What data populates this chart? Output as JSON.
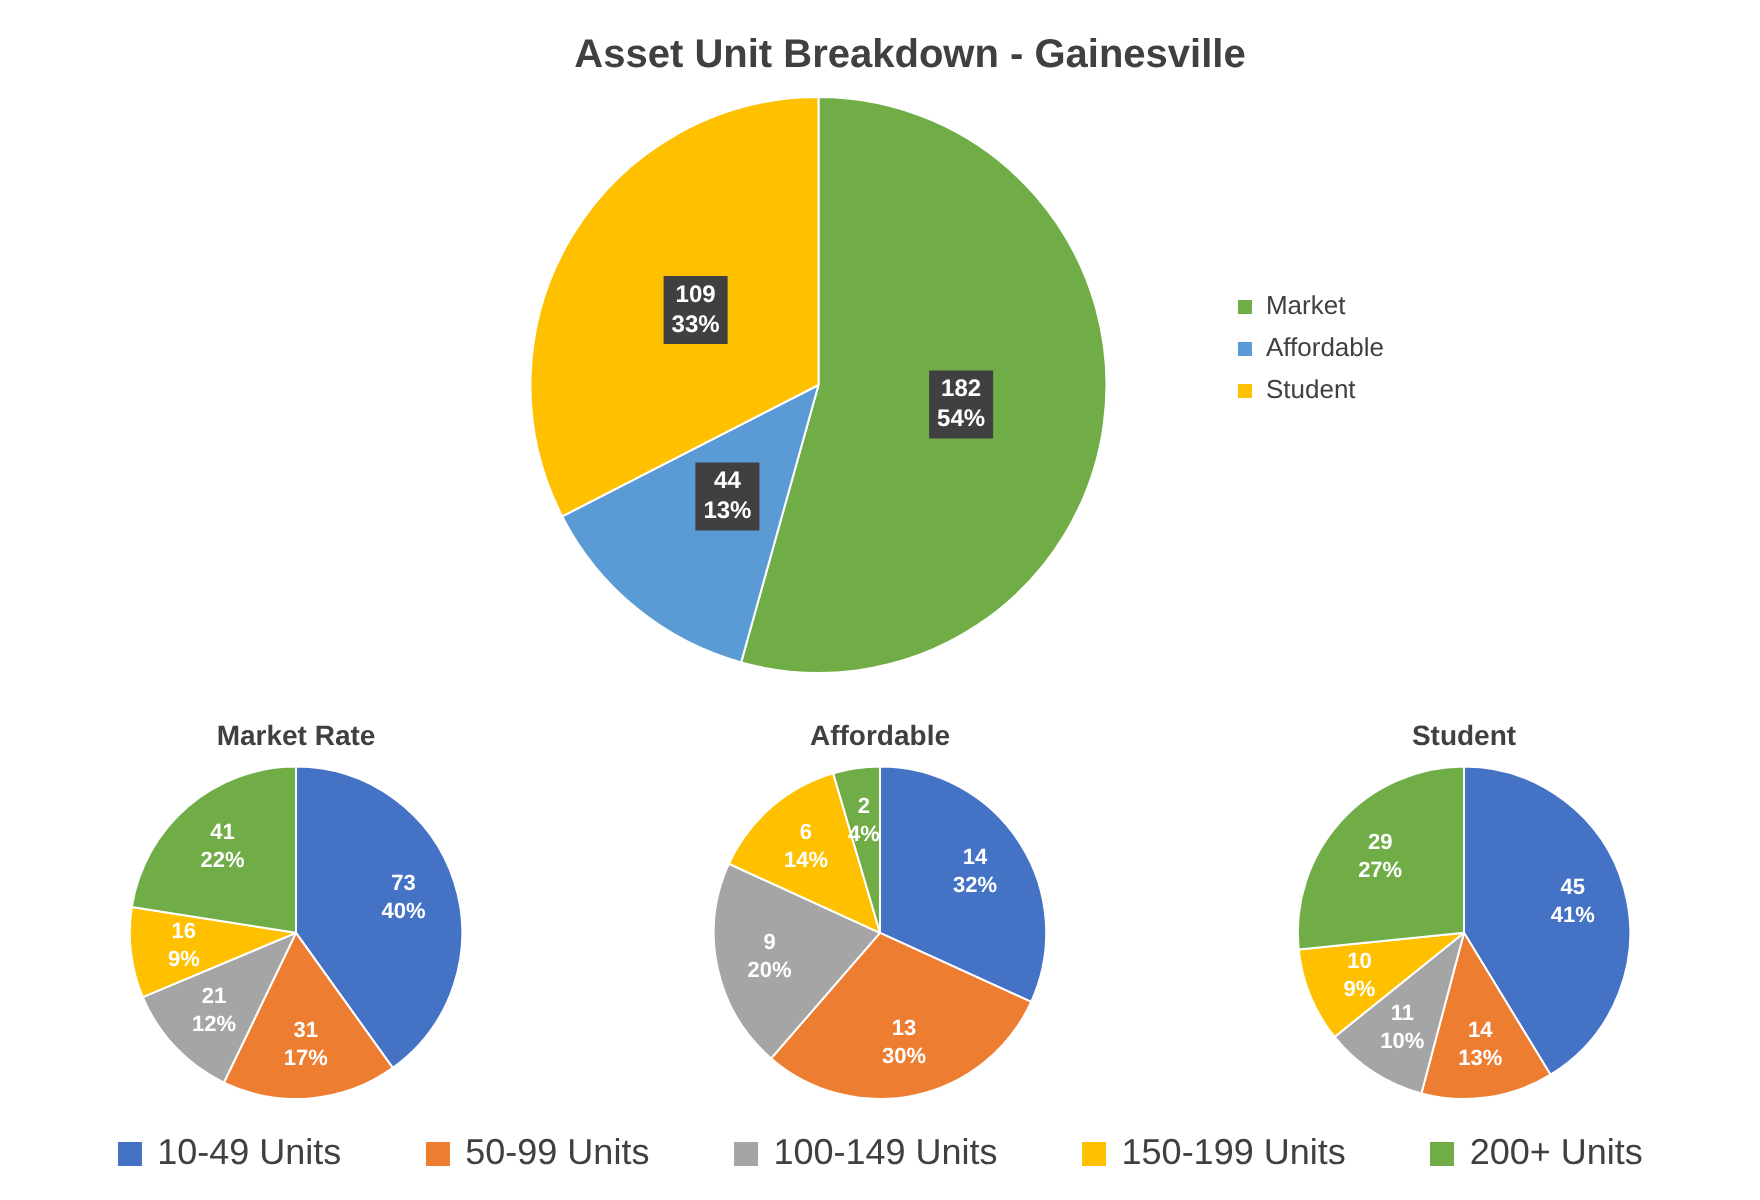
{
  "chart_data": [
    {
      "type": "pie",
      "title": "Asset Unit Breakdown - Gainesville",
      "categories": [
        "Market",
        "Affordable",
        "Student"
      ],
      "values": [
        182,
        44,
        109
      ],
      "colors": [
        "#70ad47",
        "#5b9bd5",
        "#ffc000"
      ],
      "value_labels": [
        "182\n54%",
        "44\n13%",
        "109\n33%"
      ],
      "legend": "right"
    },
    {
      "type": "pie",
      "title": "Market Rate",
      "categories": [
        "10-49 Units",
        "50-99 Units",
        "100-149 Units",
        "150-199 Units",
        "200+ Units"
      ],
      "values": [
        73,
        31,
        21,
        16,
        41
      ],
      "colors": [
        "#4472c4",
        "#ed7d31",
        "#a5a5a5",
        "#ffc000",
        "#70ad47"
      ],
      "value_labels": [
        "73\n40%",
        "31\n17%",
        "21\n12%",
        "16\n9%",
        "41\n22%"
      ],
      "legend": "bottom"
    },
    {
      "type": "pie",
      "title": "Affordable",
      "categories": [
        null,
        null,
        null,
        null,
        null
      ],
      "values": [
        14,
        13,
        9,
        6,
        2
      ],
      "colors": [
        "#4472c4",
        "#ed7d31",
        "#a5a5a5",
        "#ffc000",
        "#70ad47"
      ],
      "value_labels": [
        "14\n32%",
        "13\n30%",
        "9\n20%",
        "6\n14%",
        "2\n4%"
      ]
    },
    {
      "type": "pie",
      "title": "Student",
      "categories": [
        null,
        null,
        null,
        null,
        null
      ],
      "values": [
        45,
        14,
        11,
        10,
        29
      ],
      "colors": [
        "#4472c4",
        "#ed7d31",
        "#a5a5a5",
        "#ffc000",
        "#70ad47"
      ],
      "value_labels": [
        "45\n41%",
        "14\n13%",
        "11\n10%",
        "10\n9%",
        "29\n27%"
      ]
    }
  ]
}
